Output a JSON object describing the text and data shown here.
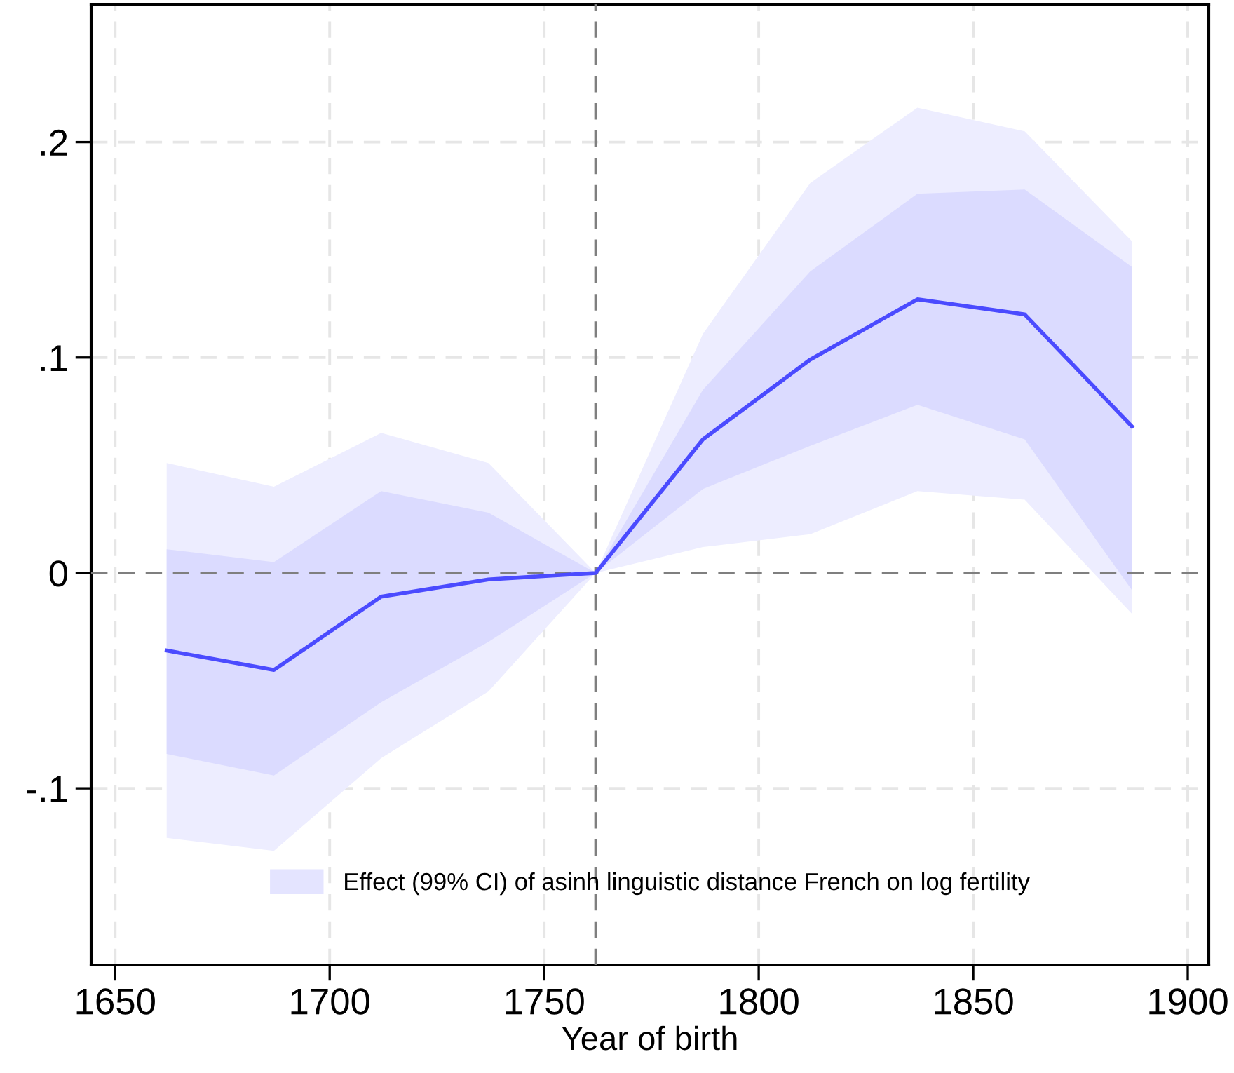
{
  "chart_data": {
    "type": "line",
    "xlabel": "Year of birth",
    "x": [
      1662,
      1687,
      1712,
      1737,
      1762,
      1787,
      1812,
      1837,
      1862,
      1887
    ],
    "series": [
      {
        "name": "Effect (99% CI) of asinh linguistic distance French on log fertility",
        "color": "#4b4bff",
        "values": [
          -0.036,
          -0.045,
          -0.011,
          -0.003,
          0,
          0.062,
          0.099,
          0.127,
          0.12,
          0.068
        ],
        "lower": [
          -0.123,
          -0.129,
          -0.086,
          -0.055,
          0,
          0.012,
          0.018,
          0.038,
          0.034,
          -0.019
        ],
        "upper": [
          0.051,
          0.04,
          0.065,
          0.051,
          0,
          0.111,
          0.181,
          0.216,
          0.205,
          0.154
        ]
      },
      {
        "color": "#4b4bff",
        "values": [
          null,
          null,
          null,
          null,
          null,
          null,
          null,
          null,
          null,
          null
        ],
        "lower": [
          -0.084,
          -0.094,
          -0.06,
          -0.032,
          0,
          0.039,
          0.059,
          0.078,
          0.062,
          -0.008
        ],
        "upper": [
          0.011,
          0.005,
          0.038,
          0.028,
          0,
          0.085,
          0.14,
          0.176,
          0.178,
          0.142
        ]
      }
    ],
    "xlim": [
      1644.4,
      1904.9
    ],
    "xticks": [
      1650,
      1700,
      1750,
      1800,
      1850,
      1900
    ],
    "ylim": [
      -0.182,
      0.264
    ],
    "yticks": [
      {
        "value": -0.1,
        "label": "-.1"
      },
      0,
      {
        "value": 0.1,
        "label": ".1"
      },
      {
        "value": 0.2,
        "label": ".2"
      }
    ],
    "ref_lines": [
      {
        "axis": "y",
        "value": 0,
        "color": "#7f7f7f",
        "line_style": "dashed"
      },
      {
        "axis": "x",
        "value": 1762,
        "color": "#7f7f7f",
        "line_style": "dashed"
      }
    ],
    "grid": true,
    "legend": "bottom",
    "line_style": "solid",
    "marker": "none"
  }
}
